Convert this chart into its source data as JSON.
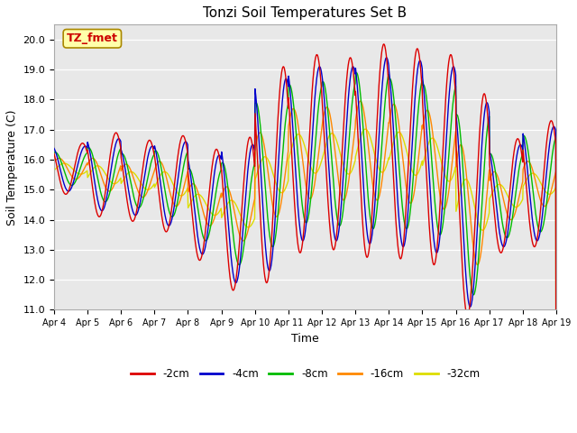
{
  "title": "Tonzi Soil Temperatures Set B",
  "xlabel": "Time",
  "ylabel": "Soil Temperature (C)",
  "ylim": [
    11.0,
    20.5
  ],
  "yticks": [
    11.0,
    12.0,
    13.0,
    14.0,
    15.0,
    16.0,
    17.0,
    18.0,
    19.0,
    20.0
  ],
  "x_labels": [
    "Apr 4",
    "Apr 5",
    "Apr 6",
    "Apr 7",
    "Apr 8",
    "Apr 9",
    "Apr 10",
    "Apr 11",
    "Apr 12",
    "Apr 13",
    "Apr 14",
    "Apr 15",
    "Apr 16",
    "Apr 17",
    "Apr 18",
    "Apr 19"
  ],
  "colors": {
    "-2cm": "#dd0000",
    "-4cm": "#0000cc",
    "-8cm": "#00bb00",
    "-16cm": "#ff8800",
    "-32cm": "#dddd00"
  },
  "annotation_text": "TZ_fmet",
  "annotation_color": "#cc0000",
  "annotation_bg": "#ffffaa",
  "annotation_border": "#aa8800",
  "fig_bg": "#ffffff",
  "plot_bg": "#e8e8e8",
  "grid_color": "#ffffff",
  "n_days": 15,
  "ppd": 96,
  "mean_trend": [
    15.7,
    15.5,
    15.3,
    15.2,
    14.5,
    14.2,
    15.5,
    16.2,
    16.2,
    16.3,
    16.2,
    16.0,
    14.5,
    14.8,
    15.2
  ],
  "amp_2cm": [
    0.85,
    1.4,
    1.35,
    1.6,
    1.85,
    2.55,
    3.6,
    3.3,
    3.2,
    3.55,
    3.5,
    3.5,
    3.7,
    1.9,
    2.1
  ],
  "amp_4cm": [
    0.75,
    1.2,
    1.15,
    1.4,
    1.65,
    2.3,
    3.2,
    2.9,
    2.9,
    3.1,
    3.1,
    3.1,
    3.4,
    1.7,
    1.9
  ],
  "amp_8cm": [
    0.55,
    0.9,
    0.9,
    1.1,
    1.2,
    1.7,
    2.4,
    2.3,
    2.4,
    2.6,
    2.5,
    2.5,
    3.0,
    1.4,
    1.6
  ],
  "amp_16cm": [
    0.35,
    0.55,
    0.55,
    0.75,
    0.7,
    0.9,
    1.4,
    1.5,
    1.55,
    1.65,
    1.65,
    1.65,
    2.0,
    0.8,
    0.75
  ],
  "amp_32cm": [
    0.18,
    0.3,
    0.3,
    0.4,
    0.35,
    0.45,
    0.6,
    0.65,
    0.68,
    0.72,
    0.72,
    0.72,
    0.85,
    0.38,
    0.35
  ],
  "phase_2cm": 0.0,
  "phase_4cm": 0.08,
  "phase_8cm": 0.18,
  "phase_16cm": 0.3,
  "phase_32cm": 0.45
}
